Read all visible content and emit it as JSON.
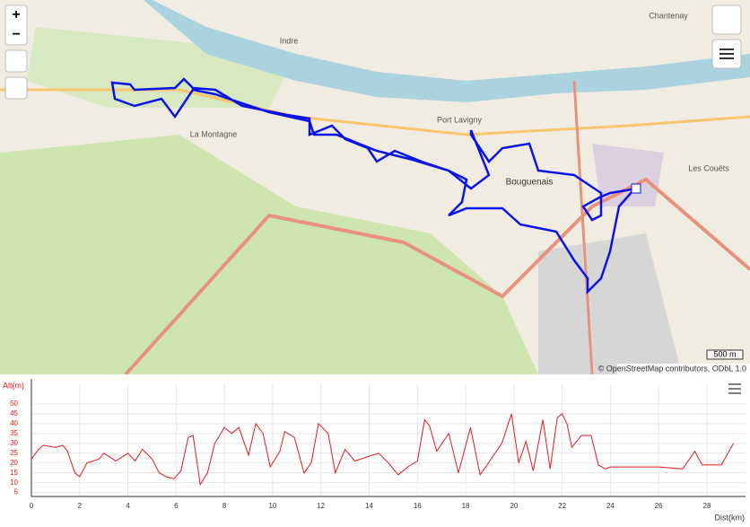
{
  "map": {
    "controls": {
      "zoom_in": "+",
      "zoom_out": "−"
    },
    "places": [
      "Bouguenais",
      "La Montagne",
      "Chantenay",
      "Port Lavigny",
      "Les Couëts",
      "Indre"
    ],
    "scale": "500 m",
    "attribution": "© OpenStreetMap contributors, ODbL 1.0"
  },
  "chart_data": {
    "type": "line",
    "y_label": "Alt(m)",
    "x_label": "Dist(km)",
    "x": [
      0,
      0.3,
      0.5,
      1,
      1.3,
      1.5,
      1.8,
      2,
      2.3,
      2.8,
      3,
      3.5,
      4,
      4.3,
      4.6,
      5,
      5.3,
      5.6,
      5.9,
      6.2,
      6.5,
      6.7,
      7,
      7.3,
      7.6,
      8,
      8.3,
      8.6,
      9,
      9.3,
      9.6,
      9.9,
      10.3,
      10.5,
      10.9,
      11.3,
      11.6,
      11.9,
      12.3,
      12.6,
      13,
      13.4,
      13.9,
      14.4,
      14.8,
      15.2,
      15.6,
      16,
      16.3,
      16.5,
      16.8,
      17.3,
      17.7,
      18.2,
      18.6,
      19,
      19.5,
      19.9,
      20.2,
      20.5,
      20.8,
      21.2,
      21.5,
      21.8,
      22,
      22.2,
      22.4,
      22.8,
      23.2,
      23.5,
      23.8,
      24,
      25,
      26,
      27,
      27.5,
      27.8,
      28.6,
      29.1
    ],
    "series": [
      {
        "name": "Alt",
        "color": "#e31a1c",
        "values": [
          22,
          27,
          29,
          28,
          29,
          26,
          15,
          13,
          20,
          22,
          25,
          21,
          25,
          21,
          27,
          22,
          15,
          13,
          12,
          16,
          33,
          34,
          9,
          15,
          30,
          38,
          35,
          38,
          24,
          40,
          35,
          18,
          26,
          36,
          33,
          15,
          20,
          40,
          35,
          15,
          27,
          21,
          23,
          25,
          20,
          14,
          18,
          21,
          42,
          39,
          26,
          35,
          15,
          38,
          14,
          21,
          30,
          45,
          20,
          31,
          16,
          42,
          17,
          43,
          45,
          40,
          28,
          34,
          34,
          19,
          17,
          18,
          18,
          18,
          17,
          26,
          19,
          19,
          30
        ]
      }
    ],
    "xlim": [
      0,
      29.6
    ],
    "ylim": [
      3,
      60
    ],
    "xticks": [
      0,
      2,
      4,
      6,
      8,
      10,
      12,
      14,
      16,
      18,
      20,
      22,
      24,
      26,
      28
    ],
    "yticks": [
      5,
      10,
      15,
      20,
      25,
      30,
      35,
      40,
      45,
      50
    ],
    "grid": true
  }
}
